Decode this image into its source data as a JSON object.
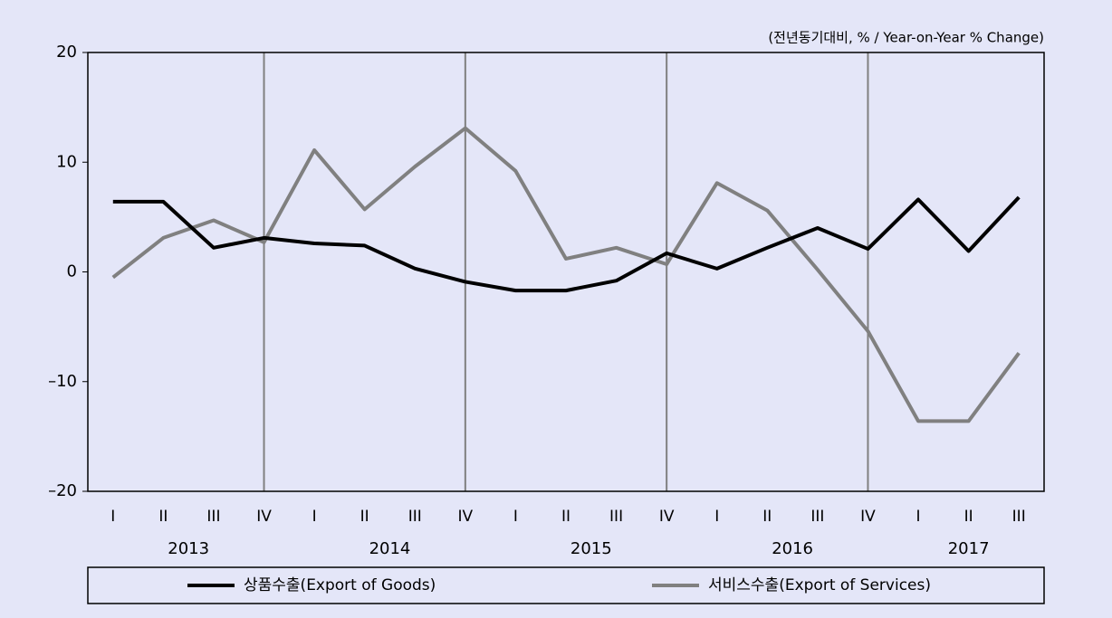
{
  "chart_data": {
    "type": "line",
    "annotation": "(전년동기대비, % / Year-on-Year % Change)",
    "groups": [
      {
        "label": "2013",
        "categories": [
          "I",
          "II",
          "III",
          "IV"
        ]
      },
      {
        "label": "2014",
        "categories": [
          "I",
          "II",
          "III",
          "IV"
        ]
      },
      {
        "label": "2015",
        "categories": [
          "I",
          "II",
          "III",
          "IV"
        ]
      },
      {
        "label": "2016",
        "categories": [
          "I",
          "II",
          "III",
          "IV"
        ]
      },
      {
        "label": "2017",
        "categories": [
          "I",
          "II",
          "III"
        ]
      }
    ],
    "series": [
      {
        "name": "상품수출(Export of Goods)",
        "color": "#000000",
        "values": [
          6.4,
          6.4,
          2.2,
          3.1,
          2.6,
          2.4,
          0.3,
          -0.9,
          -1.7,
          -1.7,
          -0.8,
          1.7,
          0.3,
          2.2,
          4.0,
          2.1,
          6.6,
          1.9,
          6.8
        ]
      },
      {
        "name": "서비스수출(Export of Services)",
        "color": "#808080",
        "values": [
          -0.5,
          3.1,
          4.7,
          2.7,
          11.1,
          5.7,
          9.6,
          13.1,
          9.2,
          1.2,
          2.2,
          0.7,
          8.1,
          5.6,
          0.2,
          -5.4,
          -13.6,
          -13.6,
          -7.4
        ]
      }
    ],
    "ylim": [
      -20,
      20
    ],
    "yticks": [
      {
        "value": -20,
        "label": "–20"
      },
      {
        "value": -10,
        "label": "–10"
      },
      0,
      10,
      20
    ],
    "legend": "bottom"
  }
}
